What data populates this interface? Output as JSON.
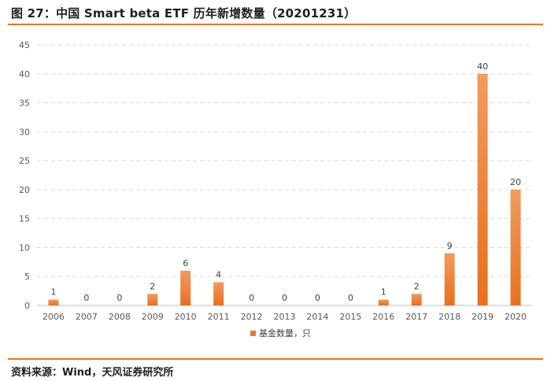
{
  "header": {
    "title": "图 27：中国 Smart beta ETF 历年新增数量（20201231）"
  },
  "footer": {
    "source": "资料来源：Wind，天风证券研究所"
  },
  "colors": {
    "accent": "#e87722",
    "bar": "#ed7d31",
    "grid": "#d9d9d9"
  },
  "chart_data": {
    "type": "bar",
    "categories": [
      "2006",
      "2007",
      "2008",
      "2009",
      "2010",
      "2011",
      "2012",
      "2013",
      "2014",
      "2015",
      "2016",
      "2017",
      "2018",
      "2019",
      "2020"
    ],
    "series": [
      {
        "name": "基金数量，只",
        "values": [
          1,
          0,
          0,
          2,
          6,
          4,
          0,
          0,
          0,
          0,
          1,
          2,
          9,
          40,
          20
        ]
      }
    ],
    "ylim": [
      0,
      45
    ],
    "yticks": [
      0,
      5,
      10,
      15,
      20,
      25,
      30,
      35,
      40,
      45
    ],
    "grid": true,
    "data_labels": true,
    "legend": "bottom"
  }
}
